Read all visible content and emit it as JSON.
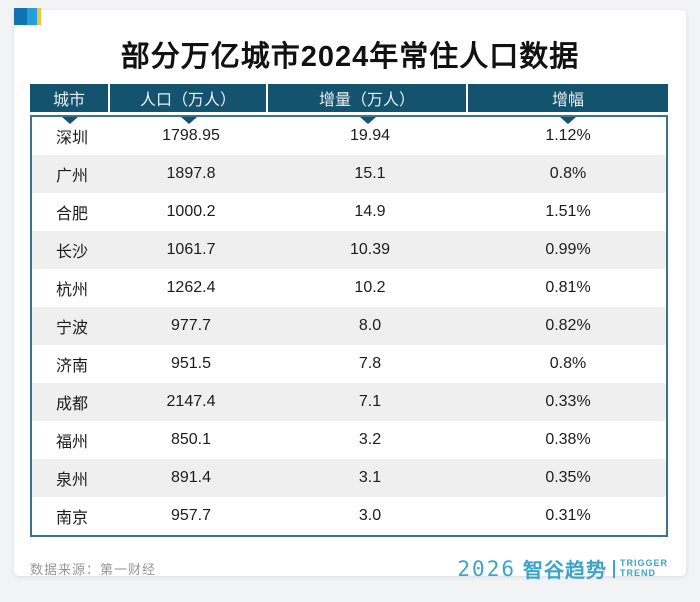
{
  "title": "部分万亿城市2024年常住人口数据",
  "chart_data": {
    "type": "table",
    "title": "部分万亿城市2024年常住人口数据",
    "columns": [
      "城市",
      "人口（万人）",
      "增量（万人）",
      "增幅"
    ],
    "rows": [
      [
        "深圳",
        "1798.95",
        "19.94",
        "1.12%"
      ],
      [
        "广州",
        "1897.8",
        "15.1",
        "0.8%"
      ],
      [
        "合肥",
        "1000.2",
        "14.9",
        "1.51%"
      ],
      [
        "长沙",
        "1061.7",
        "10.39",
        "0.99%"
      ],
      [
        "杭州",
        "1262.4",
        "10.2",
        "0.81%"
      ],
      [
        "宁波",
        "977.7",
        "8.0",
        "0.82%"
      ],
      [
        "济南",
        "951.5",
        "7.8",
        "0.8%"
      ],
      [
        "成都",
        "2147.4",
        "7.1",
        "0.33%"
      ],
      [
        "福州",
        "850.1",
        "3.2",
        "0.38%"
      ],
      [
        "泉州",
        "891.4",
        "3.1",
        "0.35%"
      ],
      [
        "南京",
        "957.7",
        "3.0",
        "0.31%"
      ]
    ],
    "source": "数据来源：第一财经"
  },
  "footer": {
    "source": "数据来源：第一财经",
    "logo": {
      "year": "2026",
      "brand": "智谷趋势",
      "tagline_line1": "TRIGGER",
      "tagline_line2": "TREND"
    }
  },
  "colors": {
    "header_bg": "#14536e",
    "table_border": "#3a7390",
    "row_alt": "#efefef",
    "logo_blue": "#3ba5c9",
    "deco_dark_blue": "#1272ae",
    "deco_light_blue": "#23a0db",
    "deco_yellow": "#e8c53e",
    "page_bg": "#f2f3f4"
  }
}
